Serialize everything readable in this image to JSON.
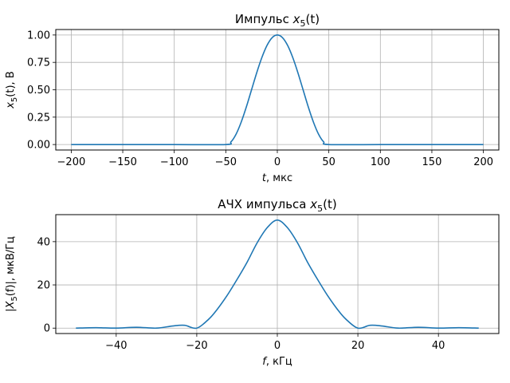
{
  "chart_data": [
    {
      "type": "line",
      "title": "Импульс x5(t)",
      "title_parts": {
        "pre": "Импульс ",
        "sym": "x",
        "sub": "5",
        "args": "(t)"
      },
      "xlabel": "t, мкс",
      "xlabel_parts": {
        "sym": "t",
        "rest": ", мкс"
      },
      "ylabel": "x5(t), В",
      "ylabel_parts": {
        "sym": "x",
        "sub": "5",
        "args": "(t)",
        "rest": ", В"
      },
      "xlim": [
        -215,
        215
      ],
      "ylim": [
        -0.05,
        1.05
      ],
      "grid": true,
      "xticks": [
        -200,
        -150,
        -100,
        -50,
        0,
        50,
        100,
        150,
        200
      ],
      "xtick_labels": [
        "−200",
        "−150",
        "−100",
        "−50",
        "0",
        "50",
        "100",
        "150",
        "200"
      ],
      "yticks": [
        0.0,
        0.25,
        0.5,
        0.75,
        1.0
      ],
      "ytick_labels": [
        "0.00",
        "0.25",
        "0.50",
        "0.75",
        "1.00"
      ],
      "series": [
        {
          "color": "#1f77b4",
          "x": [
            -200,
            -100,
            -50,
            -45,
            -40,
            -35,
            -30,
            -25,
            -20,
            -15,
            -10,
            -5,
            0,
            5,
            10,
            15,
            20,
            25,
            30,
            35,
            40,
            45,
            50,
            100,
            200
          ],
          "y": [
            0,
            0,
            0,
            0.024,
            0.095,
            0.206,
            0.345,
            0.5,
            0.655,
            0.794,
            0.905,
            0.976,
            1.0,
            0.976,
            0.905,
            0.794,
            0.655,
            0.5,
            0.345,
            0.206,
            0.095,
            0.024,
            0,
            0,
            0
          ]
        }
      ]
    },
    {
      "type": "line",
      "title": "АЧХ импульса x5(t)",
      "title_parts": {
        "pre": "АЧХ импульса ",
        "sym": "x",
        "sub": "5",
        "args": "(t)"
      },
      "xlabel": "f, кГц",
      "xlabel_parts": {
        "sym": "f",
        "rest": ", кГц"
      },
      "ylabel": "|X5(f)|, мкВ/Гц",
      "ylabel_parts": {
        "pre": "|",
        "sym": "X",
        "sub": "5",
        "args": "(f)|",
        "rest": ", мкВ/Гц"
      },
      "xlim": [
        -55,
        55
      ],
      "ylim": [
        -2.5,
        52.5
      ],
      "grid": true,
      "xticks": [
        -40,
        -20,
        0,
        20,
        40
      ],
      "xtick_labels": [
        "−40",
        "−20",
        "0",
        "20",
        "40"
      ],
      "yticks": [
        0,
        20,
        40
      ],
      "ytick_labels": [
        "0",
        "20",
        "40"
      ],
      "series": [
        {
          "color": "#1f77b4",
          "x": [
            -50,
            -45,
            -40,
            -35,
            -30,
            -26,
            -23,
            -20,
            -17,
            -15,
            -12.5,
            -10,
            -7.5,
            -5,
            -2.5,
            0,
            2.5,
            5,
            7.5,
            10,
            12.5,
            15,
            17,
            20,
            23,
            26,
            30,
            35,
            40,
            45,
            50
          ],
          "y": [
            0,
            0.2,
            0,
            0.4,
            0,
            1.0,
            1.3,
            0,
            4.2,
            8.5,
            15.0,
            22.5,
            30.5,
            39.5,
            46.5,
            50,
            46.5,
            39.5,
            30.5,
            22.5,
            15.0,
            8.5,
            4.2,
            0,
            1.3,
            1.0,
            0,
            0.4,
            0,
            0.2,
            0
          ]
        }
      ]
    }
  ]
}
